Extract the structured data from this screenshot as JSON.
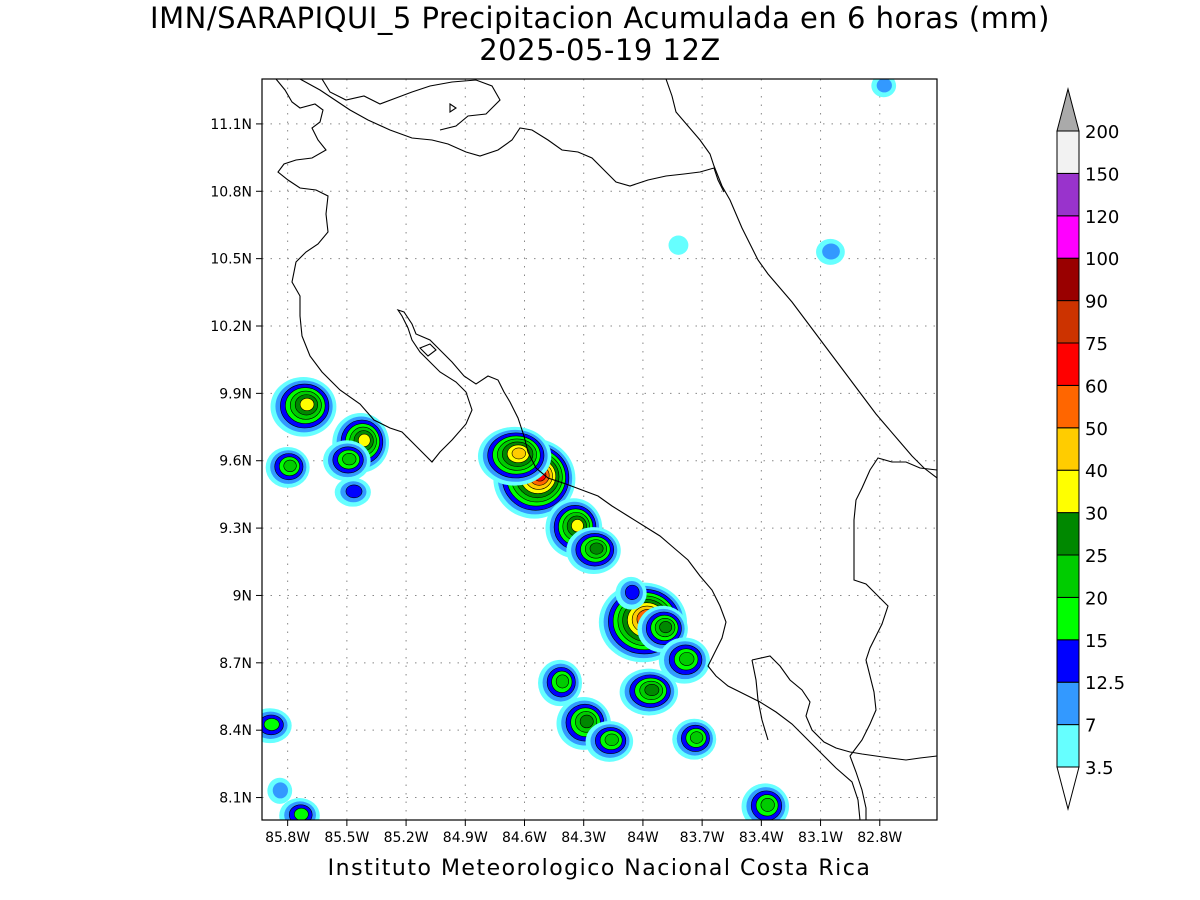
{
  "title": {
    "line1": "IMN/SARAPIQUI_5 Precipitacion Acumulada en 6 horas (mm)",
    "line2": "2025-05-19 12Z"
  },
  "footer": "Instituto Meteorologico Nacional Costa Rica",
  "axes": {
    "lat_ticks": [
      "11.1N",
      "10.8N",
      "10.5N",
      "10.2N",
      "9.9N",
      "9.6N",
      "9.3N",
      "9N",
      "8.7N",
      "8.4N",
      "8.1N"
    ],
    "lat_values": [
      11.1,
      10.8,
      10.5,
      10.2,
      9.9,
      9.6,
      9.3,
      9.0,
      8.7,
      8.4,
      8.1
    ],
    "lon_ticks": [
      "85.8W",
      "85.5W",
      "85.2W",
      "84.9W",
      "84.6W",
      "84.3W",
      "84W",
      "83.7W",
      "83.4W",
      "83.1W",
      "82.8W"
    ],
    "lon_values": [
      -85.8,
      -85.5,
      -85.2,
      -84.9,
      -84.6,
      -84.3,
      -84.0,
      -83.7,
      -83.4,
      -83.1,
      -82.8
    ],
    "lon_range": [
      -85.93,
      -82.51
    ],
    "lat_range": [
      8.0,
      11.3
    ],
    "grid": "dotted"
  },
  "colorbar": {
    "levels": [
      "3.5",
      "7",
      "12.5",
      "15",
      "20",
      "25",
      "30",
      "40",
      "50",
      "60",
      "75",
      "90",
      "100",
      "120",
      "150",
      "200"
    ],
    "colors": [
      "#66ffff",
      "#3399ff",
      "#0000ff",
      "#00ff00",
      "#00cc00",
      "#008800",
      "#ffff00",
      "#ffcc00",
      "#ff6600",
      "#ff0000",
      "#cc3300",
      "#990000",
      "#ff00ff",
      "#9933cc",
      "#f2f2f2",
      "#aaaaaa"
    ]
  },
  "rain_cells": [
    {
      "lon": -85.43,
      "lat": 9.68,
      "max": "30"
    },
    {
      "lon": -85.5,
      "lat": 9.6,
      "max": "20"
    },
    {
      "lon": -85.72,
      "lat": 9.84,
      "max": "30"
    },
    {
      "lon": -85.8,
      "lat": 9.57,
      "max": "20"
    },
    {
      "lon": -84.55,
      "lat": 9.52,
      "max": "60"
    },
    {
      "lon": -84.65,
      "lat": 9.62,
      "max": "40"
    },
    {
      "lon": -84.35,
      "lat": 9.3,
      "max": "30"
    },
    {
      "lon": -84.25,
      "lat": 9.2,
      "max": "25"
    },
    {
      "lon": -84.0,
      "lat": 8.88,
      "max": "60"
    },
    {
      "lon": -83.9,
      "lat": 8.85,
      "max": "25"
    },
    {
      "lon": -84.3,
      "lat": 8.43,
      "max": "25"
    },
    {
      "lon": -83.97,
      "lat": 8.57,
      "max": "25"
    },
    {
      "lon": -84.42,
      "lat": 8.61,
      "max": "20"
    },
    {
      "lon": -84.17,
      "lat": 8.35,
      "max": "20"
    },
    {
      "lon": -83.79,
      "lat": 8.71,
      "max": "20"
    },
    {
      "lon": -83.74,
      "lat": 8.36,
      "max": "20"
    },
    {
      "lon": -83.38,
      "lat": 8.06,
      "max": "20"
    },
    {
      "lon": -85.89,
      "lat": 8.42,
      "max": "15"
    },
    {
      "lon": -85.84,
      "lat": 8.13,
      "max": "7"
    },
    {
      "lon": -85.74,
      "lat": 8.02,
      "max": "15"
    },
    {
      "lon": -83.05,
      "lat": 10.53,
      "max": "7"
    },
    {
      "lon": -82.78,
      "lat": 11.27,
      "max": "7"
    },
    {
      "lon": -83.82,
      "lat": 10.56,
      "max": "3.5"
    },
    {
      "lon": -85.47,
      "lat": 9.46,
      "max": "12.5"
    },
    {
      "lon": -84.06,
      "lat": 9.01,
      "max": "12.5"
    }
  ]
}
